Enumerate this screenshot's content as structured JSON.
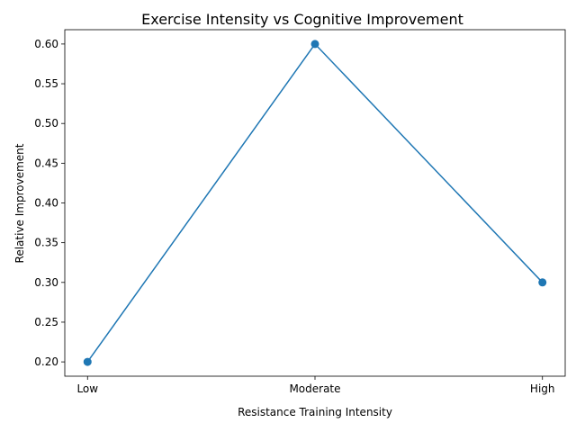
{
  "chart_data": {
    "type": "line",
    "title": "Exercise Intensity vs Cognitive Improvement",
    "xlabel": "Resistance Training Intensity",
    "ylabel": "Relative Improvement",
    "categories": [
      "Low",
      "Moderate",
      "High"
    ],
    "series": [
      {
        "values": [
          0.2,
          0.6,
          0.3
        ],
        "color": "#1f77b4",
        "marker": "circle"
      }
    ],
    "ylim": [
      0.182,
      0.618
    ],
    "yticks": [
      0.2,
      0.25,
      0.3,
      0.35,
      0.4,
      0.45,
      0.5,
      0.55,
      0.6
    ],
    "ytick_labels": [
      "0.20",
      "0.25",
      "0.30",
      "0.35",
      "0.40",
      "0.45",
      "0.50",
      "0.55",
      "0.60"
    ],
    "grid": false,
    "legend": "none"
  }
}
